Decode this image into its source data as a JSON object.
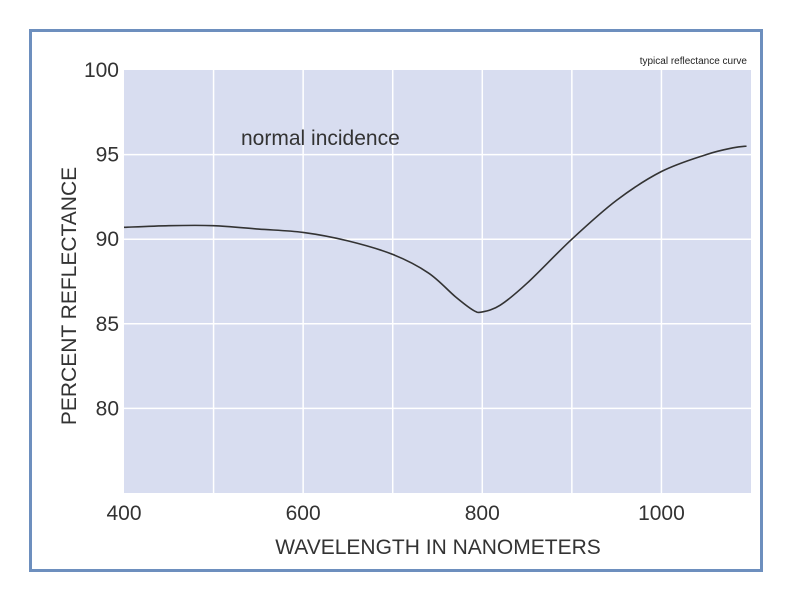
{
  "chart_data": {
    "type": "line",
    "title": "typical reflectance curve",
    "xlabel": "WAVELENGTH IN NANOMETERS",
    "ylabel": "PERCENT REFLECTANCE",
    "xlim": [
      400,
      1100
    ],
    "ylim": [
      75,
      100
    ],
    "x_ticks": [
      400,
      600,
      800,
      1000
    ],
    "y_ticks": [
      80,
      85,
      90,
      95,
      100
    ],
    "x_gridlines": [
      500,
      600,
      700,
      800,
      900,
      1000
    ],
    "y_gridlines": [
      80,
      85,
      90,
      95
    ],
    "grid": true,
    "annotations": [
      {
        "text": "normal incidence"
      }
    ],
    "series": [
      {
        "points": [
          [
            400,
            90.7
          ],
          [
            450,
            90.8
          ],
          [
            500,
            90.8
          ],
          [
            550,
            90.6
          ],
          [
            600,
            90.4
          ],
          [
            650,
            89.9
          ],
          [
            700,
            89.1
          ],
          [
            740,
            88.0
          ],
          [
            770,
            86.6
          ],
          [
            790,
            85.8
          ],
          [
            800,
            85.7
          ],
          [
            820,
            86.1
          ],
          [
            850,
            87.4
          ],
          [
            900,
            90.0
          ],
          [
            950,
            92.3
          ],
          [
            1000,
            94.0
          ],
          [
            1050,
            95.0
          ],
          [
            1080,
            95.4
          ],
          [
            1095,
            95.5
          ]
        ]
      }
    ]
  },
  "colors": {
    "plot_background": "#d8ddf0",
    "gridline": "#ffffff",
    "curve": "#333333",
    "frame_border": "#6d8fbe"
  }
}
